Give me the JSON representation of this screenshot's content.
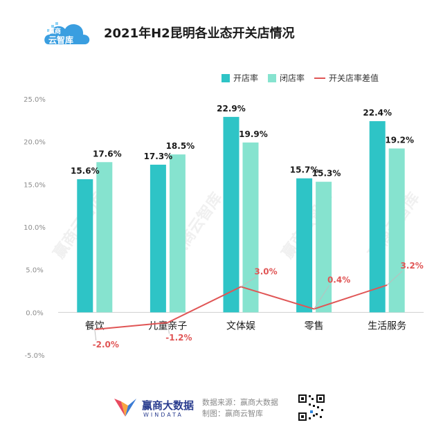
{
  "header": {
    "logo_line1": "赢商",
    "logo_line2": "云智库",
    "title": "2021年H2昆明各业态开关店情况"
  },
  "colors": {
    "open": "#2ec4c6",
    "close": "#86e3cf",
    "diff": "#e05555",
    "brand": "#2a3d8f"
  },
  "chart_data": {
    "type": "bar",
    "title": "2021年H2昆明各业态开关店情况",
    "categories": [
      "餐饮",
      "儿童亲子",
      "文体娱",
      "零售",
      "生活服务"
    ],
    "series": [
      {
        "name": "开店率",
        "type": "bar",
        "values": [
          15.6,
          17.3,
          22.9,
          15.7,
          22.4
        ],
        "labels": [
          "15.6%",
          "17.3%",
          "22.9%",
          "15.7%",
          "22.4%"
        ]
      },
      {
        "name": "闭店率",
        "type": "bar",
        "values": [
          17.6,
          18.5,
          19.9,
          15.3,
          19.2
        ],
        "labels": [
          "17.6%",
          "18.5%",
          "19.9%",
          "15.3%",
          "19.2%"
        ]
      },
      {
        "name": "开关店率差值",
        "type": "line",
        "values": [
          -2.0,
          -1.2,
          3.0,
          0.4,
          3.2
        ],
        "labels": [
          "-2.0%",
          "-1.2%",
          "3.0%",
          "0.4%",
          "3.2%"
        ]
      }
    ],
    "yticks": [
      "25.0%",
      "20.0%",
      "15.0%",
      "10.0%",
      "5.0%",
      "0.0%",
      "-5.0%"
    ],
    "ylim": [
      -5,
      25
    ],
    "legend_position": "top-right",
    "grid": false
  },
  "watermark": "赢商云智库",
  "footer": {
    "brand": "赢商大数据",
    "brand_sub": "WINDATA",
    "source_line": "数据来源：赢商大数据",
    "made_line": "制图：赢商云智库"
  }
}
